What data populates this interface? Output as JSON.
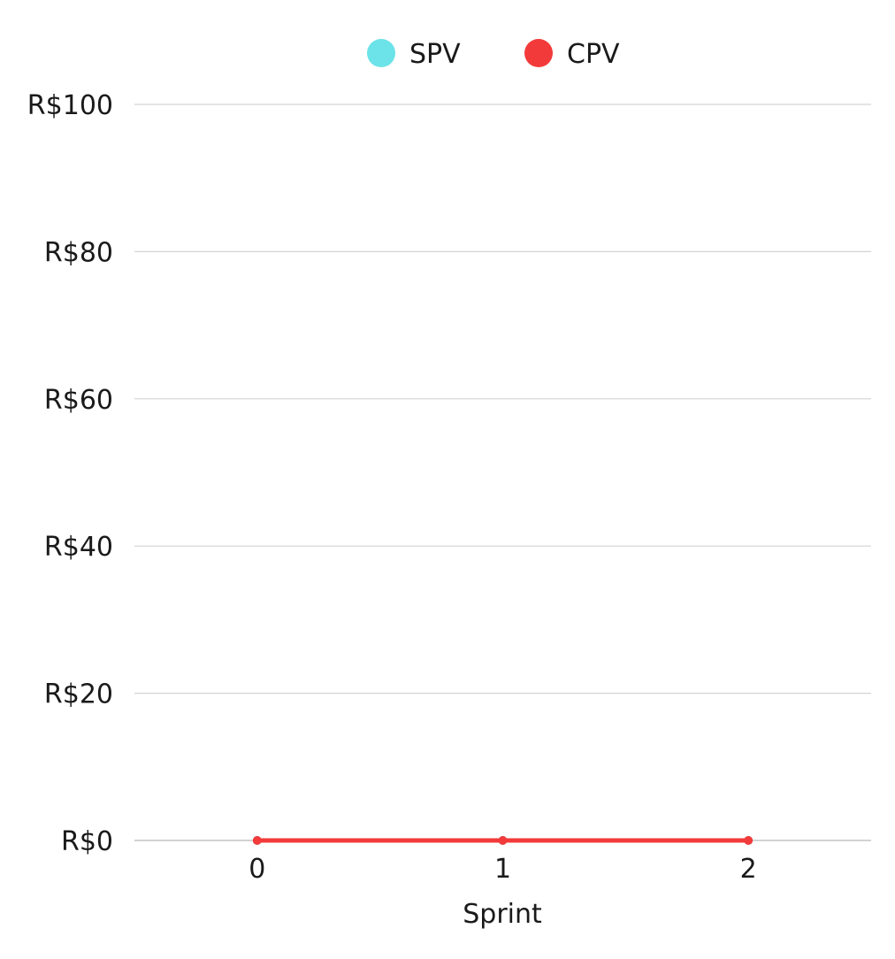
{
  "chart_data": {
    "type": "line",
    "title": "",
    "xlabel": "Sprint",
    "ylabel": "",
    "x": [
      0,
      1,
      2
    ],
    "x_tick_labels": [
      "0",
      "1",
      "2"
    ],
    "xlim": [
      -0.5,
      2.5
    ],
    "ylim": [
      0,
      100
    ],
    "y_ticks": [
      0,
      20,
      40,
      60,
      80,
      100
    ],
    "y_tick_labels": [
      "R$0",
      "R$20",
      "R$40",
      "R$60",
      "R$80",
      "R$100"
    ],
    "grid": true,
    "legend_position": "top-center",
    "series": [
      {
        "name": "SPV",
        "color": "#6be3e8",
        "values": [
          0,
          0,
          0
        ]
      },
      {
        "name": "CPV",
        "color": "#f33a3a",
        "values": [
          0,
          0,
          0
        ]
      }
    ]
  }
}
